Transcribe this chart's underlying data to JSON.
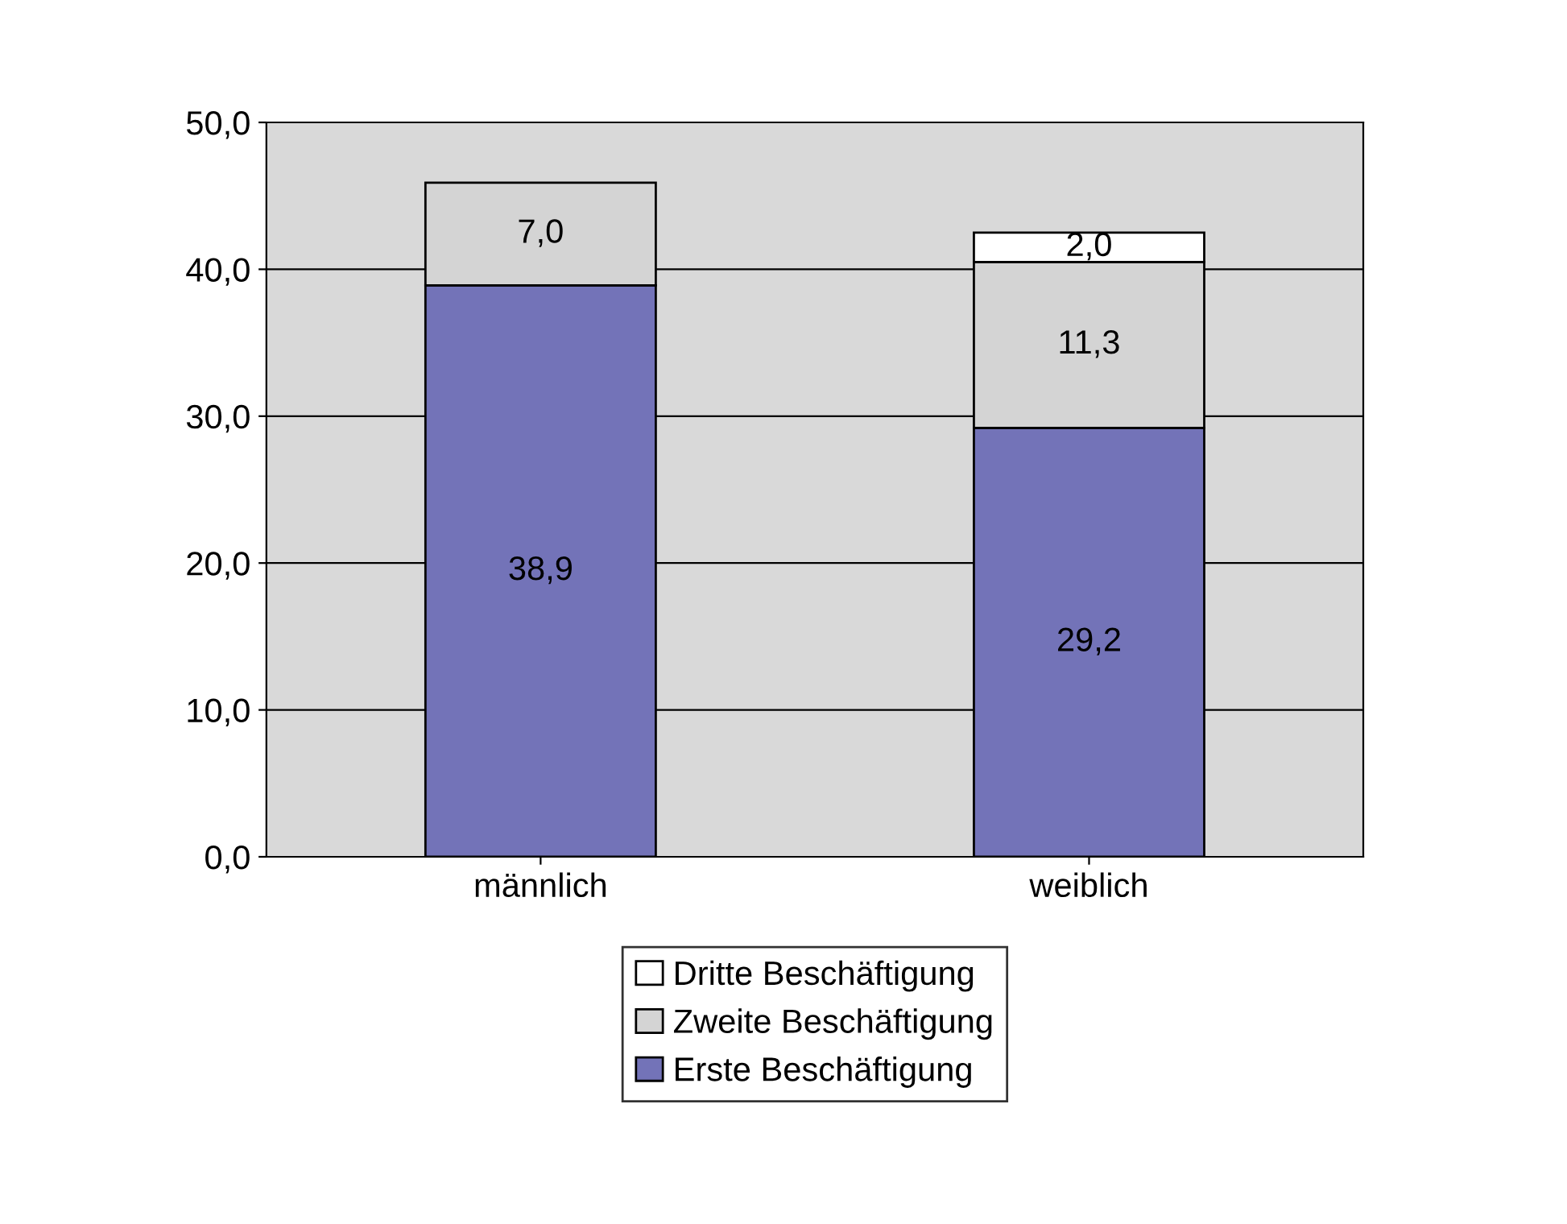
{
  "chart_data": {
    "type": "bar",
    "stacked": true,
    "categories": [
      "männlich",
      "weiblich"
    ],
    "series": [
      {
        "name": "Erste Beschäftigung",
        "color": "#7373b8",
        "values": [
          38.9,
          29.2
        ],
        "value_labels": [
          "38,9",
          "29,2"
        ]
      },
      {
        "name": "Zweite Beschäftigung",
        "color": "#d4d4d4",
        "values": [
          7.0,
          11.3
        ],
        "value_labels": [
          "7,0",
          "11,3"
        ]
      },
      {
        "name": "Dritte Beschäftigung",
        "color": "#ffffff",
        "values": [
          null,
          2.0
        ],
        "value_labels": [
          null,
          "2,0"
        ]
      }
    ],
    "ylim": [
      0,
      50
    ],
    "yticks": [
      {
        "value": 0,
        "label": "0,0"
      },
      {
        "value": 10,
        "label": "10,0"
      },
      {
        "value": 20,
        "label": "20,0"
      },
      {
        "value": 30,
        "label": "30,0"
      },
      {
        "value": 40,
        "label": "40,0"
      },
      {
        "value": 50,
        "label": "50,0"
      }
    ],
    "grid": "y",
    "legend": "bottom"
  }
}
